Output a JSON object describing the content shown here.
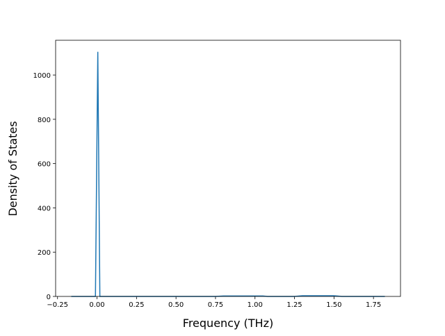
{
  "chart_data": {
    "type": "line",
    "x_label": "Frequency (THz)",
    "y_label": "Density of States",
    "x": [
      -0.163,
      -0.01,
      0.005,
      0.018,
      0.75,
      0.8,
      1.05,
      1.08,
      1.25,
      1.3,
      1.5,
      1.55,
      1.822
    ],
    "values": [
      0,
      0,
      1105,
      0,
      0,
      2,
      2,
      0,
      0,
      3,
      3,
      0,
      0
    ],
    "color": "#1f77b4",
    "xlim": [
      -0.262,
      1.921
    ],
    "ylim": [
      0,
      1157
    ],
    "xticks": [
      {
        "value": -0.25,
        "label": "−0.25"
      },
      {
        "value": 0,
        "label": "0.00"
      },
      {
        "value": 0.25,
        "label": "0.25"
      },
      {
        "value": 0.5,
        "label": "0.50"
      },
      {
        "value": 0.75,
        "label": "0.75"
      },
      {
        "value": 1,
        "label": "1.00"
      },
      {
        "value": 1.25,
        "label": "1.25"
      },
      {
        "value": 1.5,
        "label": "1.50"
      },
      {
        "value": 1.75,
        "label": "1.75"
      }
    ],
    "yticks": [
      0,
      200,
      400,
      600,
      800,
      1000
    ]
  }
}
